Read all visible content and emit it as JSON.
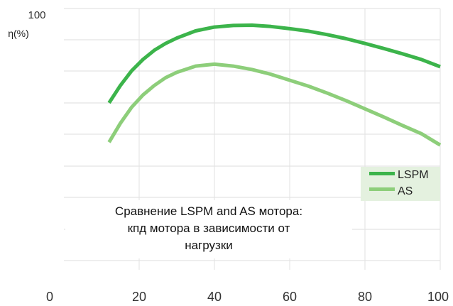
{
  "chart_data": {
    "type": "line",
    "ylabel": "η(%)",
    "y_top_label": "100",
    "x_ticks": [
      0,
      20,
      40,
      60,
      80,
      100
    ],
    "xlim": [
      0,
      100
    ],
    "grid": "horizontal",
    "legend_position": "right",
    "series": [
      {
        "name": "LSPM",
        "color": "#3cb44b",
        "x": [
          12,
          15,
          18,
          21,
          24,
          27,
          30,
          35,
          40,
          45,
          50,
          55,
          60,
          65,
          70,
          75,
          80,
          85,
          90,
          95,
          100
        ],
        "y": [
          70,
          75.5,
          80.2,
          83.8,
          86.7,
          88.9,
          90.6,
          92.9,
          94.1,
          94.6,
          94.7,
          94.3,
          93.6,
          92.8,
          91.7,
          90.4,
          88.9,
          87.3,
          85.6,
          83.8,
          81.5
        ]
      },
      {
        "name": "AS",
        "color": "#8dce7a",
        "x": [
          12,
          15,
          18,
          21,
          24,
          27,
          30,
          35,
          40,
          45,
          50,
          55,
          60,
          65,
          70,
          75,
          80,
          85,
          90,
          95,
          100
        ],
        "y": [
          57.5,
          63.5,
          68.6,
          72.5,
          75.5,
          78,
          79.7,
          81.7,
          82.3,
          81.7,
          80.6,
          79.1,
          77.2,
          75.3,
          73.1,
          70.7,
          68.1,
          65.5,
          62.8,
          60.2,
          56.6
        ]
      }
    ]
  },
  "caption": {
    "line1": "Сравнение LSPM and AS мотора:",
    "line2": "кпд мотора в зависимости от",
    "line3": "нагрузки"
  }
}
